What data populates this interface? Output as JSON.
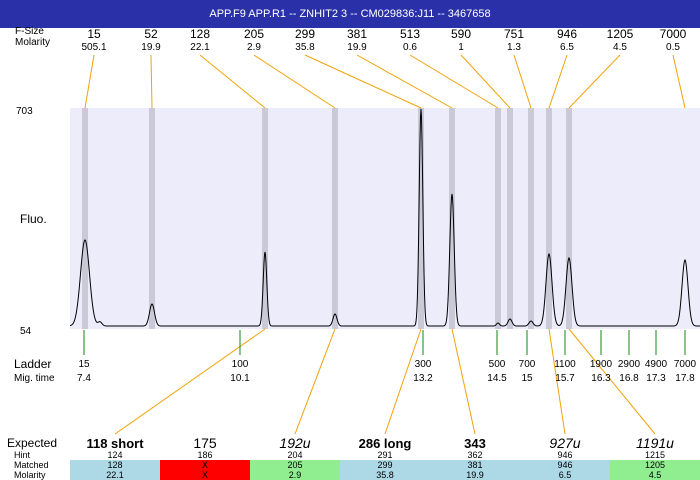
{
  "window": {
    "title": "APP.F9  APP.R1 -- ZNHIT2 3 -- CM029836:J11 -- 3467658"
  },
  "labels": {
    "fsize": "F-Size",
    "molarity": "Molarity",
    "ymax": "703",
    "ymin": "54",
    "ylabel": "Fluo.",
    "ladder": "Ladder",
    "migtime": "Mig. time",
    "expected": "Expected",
    "hint": "Hint",
    "matched": "Matched",
    "molarity_bottom": "Molarity"
  },
  "colors": {
    "title_bar": "#2a31a8",
    "plot_bg": "#ececfa",
    "marker_band": "#c9c9d8",
    "connector": "#f0a30a",
    "ladder_tick": "#118811",
    "row_blue": "#add8e6",
    "row_red": "#ff0000",
    "row_green": "#90ee90"
  },
  "chart_data": {
    "type": "line",
    "y_range": [
      54,
      703
    ],
    "top_peaks": [
      {
        "fsize": "15",
        "molarity": "505.1"
      },
      {
        "fsize": "52",
        "molarity": "19.9"
      },
      {
        "fsize": "128",
        "molarity": "22.1"
      },
      {
        "fsize": "205",
        "molarity": "2.9"
      },
      {
        "fsize": "299",
        "molarity": "35.8"
      },
      {
        "fsize": "381",
        "molarity": "19.9"
      },
      {
        "fsize": "513",
        "molarity": "0.6"
      },
      {
        "fsize": "590",
        "molarity": "1"
      },
      {
        "fsize": "751",
        "molarity": "1.3"
      },
      {
        "fsize": "946",
        "molarity": "6.5"
      },
      {
        "fsize": "1205",
        "molarity": "4.5"
      },
      {
        "fsize": "7000",
        "molarity": "0.5"
      }
    ],
    "ladder": [
      {
        "size": "15",
        "time": "7.4"
      },
      {
        "size": "100",
        "time": "10.1"
      },
      {
        "size": "300",
        "time": "13.2"
      },
      {
        "size": "500",
        "time": "14.5"
      },
      {
        "size": "700",
        "time": "15"
      },
      {
        "size": "1100",
        "time": "15.7"
      },
      {
        "size": "1900",
        "time": "16.3"
      },
      {
        "size": "2900",
        "time": "16.8"
      },
      {
        "size": "4900",
        "time": "17.3"
      },
      {
        "size": "7000",
        "time": "17.8"
      }
    ],
    "expected": [
      {
        "label": "118 short",
        "style": "bold",
        "hint": "124",
        "matched": "128",
        "molarity": "22.1",
        "status": "blue"
      },
      {
        "label": "175",
        "style": "normal",
        "hint": "186",
        "matched": "X",
        "molarity": "X",
        "status": "red"
      },
      {
        "label": "192u",
        "style": "italic",
        "hint": "204",
        "matched": "205",
        "molarity": "2.9",
        "status": "green"
      },
      {
        "label": "286 long",
        "style": "bold",
        "hint": "291",
        "matched": "299",
        "molarity": "35.8",
        "status": "blue"
      },
      {
        "label": "343",
        "style": "bold",
        "hint": "362",
        "matched": "381",
        "molarity": "19.9",
        "status": "blue"
      },
      {
        "label": "927u",
        "style": "italic",
        "hint": "946",
        "matched": "946",
        "molarity": "6.5",
        "status": "blue"
      },
      {
        "label": "1191u",
        "style": "italic",
        "hint": "1215",
        "matched": "1205",
        "molarity": "4.5",
        "status": "green"
      }
    ]
  }
}
